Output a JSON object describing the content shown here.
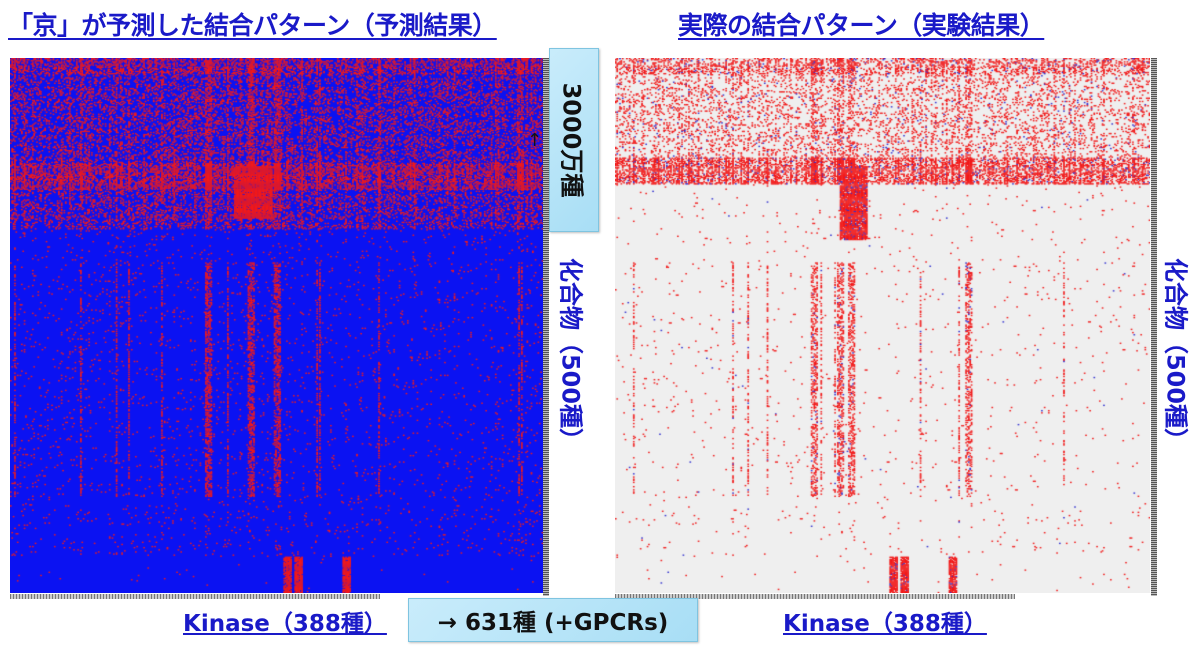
{
  "titles": {
    "left": "「京」が予測した結合パターン（予測結果）",
    "right": "実際の結合パターン（実験結果）"
  },
  "callouts": {
    "compounds_scaled": "3000万種",
    "kinase_scaled": "→ 631種 (+GPCRs)"
  },
  "axis_labels": {
    "left_y": "化合物（500種）",
    "right_y": "化合物（500種）",
    "left_x": "Kinase（388種）",
    "right_x": "Kinase（388種）"
  },
  "arrow_icon": "↑",
  "colors": {
    "title_text": "#1a1ac8",
    "pred_background": "#0b12f2",
    "binding_red": "#f21a1a",
    "actual_background": "#efefef",
    "actual_blue": "#3030d0",
    "callout_bg": "#b8e4f8"
  },
  "chart_data": [
    {
      "type": "heatmap",
      "title": "「京」が予測した結合パターン（予測結果）",
      "xlabel": "Kinase（388種）",
      "ylabel": "化合物（500種）",
      "dims": {
        "cols": 388,
        "rows": 500
      },
      "legend": {
        "binding": "red",
        "non_binding": "blue"
      },
      "annotations": [
        "3000万種",
        "→ 631種 (+GPCRs)"
      ],
      "features": {
        "dense_band_rows_fraction": [
          0.0,
          0.32
        ],
        "strong_band_row_fraction": 0.22,
        "dense_block_col_fraction": [
          0.42,
          0.49
        ],
        "vertical_stripes_col_fraction": [
          0.37,
          0.45,
          0.5
        ],
        "bottom_stripes_col_fraction": [
          0.52,
          0.54,
          0.63
        ]
      }
    },
    {
      "type": "heatmap",
      "title": "実際の結合パターン（実験結果）",
      "xlabel": "Kinase（388種）",
      "ylabel": "化合物（500種）",
      "dims": {
        "cols": 388,
        "rows": 500
      },
      "legend": {
        "binding": "red",
        "no_data": "light gray",
        "non_binding_measured": "blue"
      },
      "features": {
        "dense_band_rows_fraction": [
          0.0,
          0.22
        ],
        "strong_band_row_fraction": 0.21,
        "dense_block_col_fraction": [
          0.42,
          0.47
        ],
        "vertical_stripes_col_fraction": [
          0.37,
          0.42,
          0.44,
          0.66
        ],
        "bottom_stripes_col_fraction": [
          0.52,
          0.54,
          0.63
        ]
      }
    }
  ]
}
